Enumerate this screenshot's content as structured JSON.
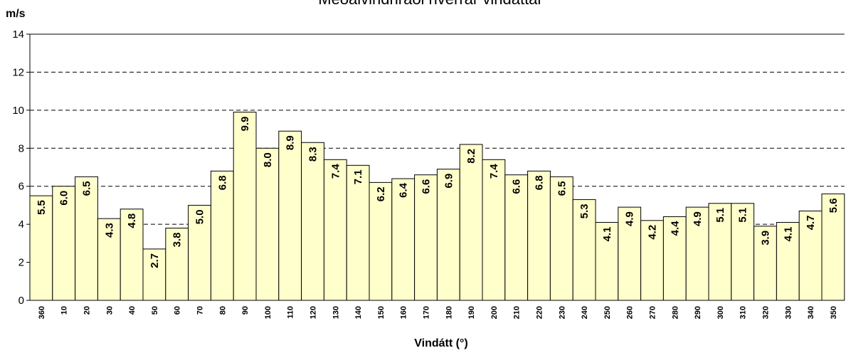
{
  "chart_data": {
    "type": "bar",
    "title": "Meðalvindhraði hverrar vindáttar",
    "ylabel": "m/s",
    "xlabel": "Vindátt (°)",
    "categories": [
      "360",
      "10",
      "20",
      "30",
      "40",
      "50",
      "60",
      "70",
      "80",
      "90",
      "100",
      "110",
      "120",
      "130",
      "140",
      "150",
      "160",
      "170",
      "180",
      "190",
      "200",
      "210",
      "220",
      "230",
      "240",
      "250",
      "260",
      "270",
      "280",
      "290",
      "300",
      "310",
      "320",
      "330",
      "340",
      "350"
    ],
    "values": [
      5.5,
      6.0,
      6.5,
      4.3,
      4.8,
      2.7,
      3.8,
      5.0,
      6.8,
      9.9,
      8.0,
      8.9,
      8.3,
      7.4,
      7.1,
      6.2,
      6.4,
      6.6,
      6.9,
      8.2,
      7.4,
      6.6,
      6.8,
      6.5,
      5.3,
      4.1,
      4.9,
      4.2,
      4.4,
      4.9,
      5.1,
      5.1,
      3.9,
      4.1,
      4.7,
      5.6
    ],
    "value_labels": [
      "5.5",
      "6.0",
      "6.5",
      "4.3",
      "4.8",
      "2.7",
      "3.8",
      "5.0",
      "6.8",
      "9.9",
      "8.0",
      "8.9",
      "8.3",
      "7.4",
      "7.1",
      "6.2",
      "6.4",
      "6.6",
      "6.9",
      "8.2",
      "7.4",
      "6.6",
      "6.8",
      "6.5",
      "5.3",
      "4.1",
      "4.9",
      "4.2",
      "4.4",
      "4.9",
      "5.1",
      "5.1",
      "3.9",
      "4.1",
      "4.7",
      "5.6"
    ],
    "color": "#ffffcc",
    "ylim": [
      0,
      14
    ],
    "yticks": [
      0,
      2,
      4,
      6,
      8,
      10,
      12,
      14
    ],
    "grid": true
  }
}
